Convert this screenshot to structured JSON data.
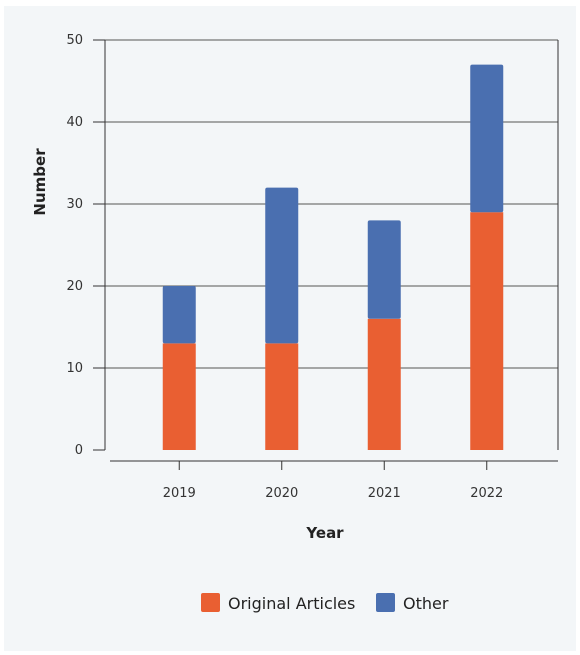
{
  "chart_data": {
    "type": "bar",
    "stacked": true,
    "categories": [
      "2019",
      "2020",
      "2021",
      "2022"
    ],
    "series": [
      {
        "name": "Original Articles",
        "values": [
          13,
          13,
          16,
          29
        ],
        "color": "#e95f32"
      },
      {
        "name": "Other",
        "values": [
          7,
          19,
          12,
          18
        ],
        "color": "#4a6fb0"
      }
    ],
    "xlabel": "Year",
    "ylabel": "Number",
    "ylim": [
      0,
      50
    ],
    "yticks": [
      "0",
      "10",
      "20",
      "30",
      "40",
      "50"
    ],
    "grid": true,
    "legend_position": "bottom"
  }
}
